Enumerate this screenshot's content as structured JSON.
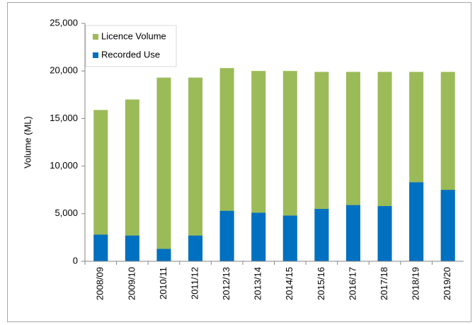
{
  "chart_data": {
    "type": "bar",
    "barmode": "overlay",
    "ylabel": "Volume (ML)",
    "categories": [
      "2008/09",
      "2009/10",
      "2010/11",
      "2011/12",
      "2012/13",
      "2013/14",
      "2014/15",
      "2015/16",
      "2016/17",
      "2017/18",
      "2018/19",
      "2019/20"
    ],
    "series": [
      {
        "name": "Licence Volume",
        "color": "#9bbb59",
        "values": [
          15900,
          17000,
          19300,
          19300,
          20300,
          20000,
          20000,
          19900,
          19900,
          19900,
          19900,
          19900
        ]
      },
      {
        "name": "Recorded Use",
        "color": "#0070c0",
        "values": [
          2800,
          2700,
          1300,
          2700,
          5300,
          5100,
          4800,
          5500,
          5900,
          5800,
          8300,
          7500
        ]
      }
    ],
    "ylim": [
      0,
      25000
    ],
    "yticks": [
      0,
      {
        "value": 5000,
        "label": "5,000"
      },
      {
        "value": 10000,
        "label": "10,000"
      },
      {
        "value": 15000,
        "label": "15,000"
      },
      {
        "value": 20000,
        "label": "20,000"
      },
      {
        "value": 25000,
        "label": "25,000"
      }
    ],
    "grid": false,
    "legend": "upper left"
  }
}
